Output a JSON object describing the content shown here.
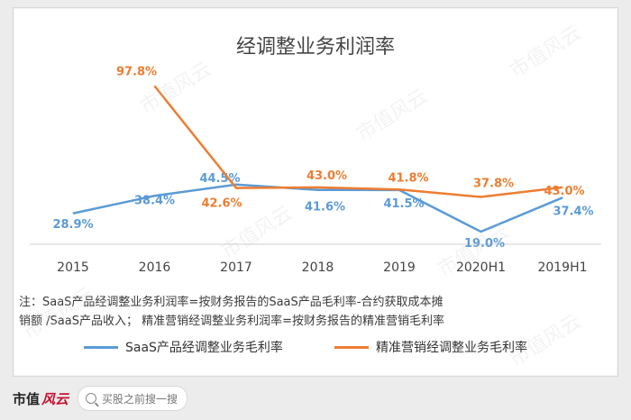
{
  "chart_data": {
    "type": "line",
    "title": "经调整业务利润率",
    "categories": [
      "2015",
      "2016",
      "2017",
      "2018",
      "2019",
      "2020H1",
      "2019H1"
    ],
    "series": [
      {
        "name": "SaaS产品经调整业务毛利率",
        "color": "#5b9bd5",
        "values": [
          28.9,
          38.4,
          44.5,
          41.6,
          41.5,
          19.0,
          37.4
        ],
        "labels": [
          "28.9%",
          "38.4%",
          "44.5%",
          "41.6%",
          "41.5%",
          "19.0%",
          "37.4%"
        ]
      },
      {
        "name": "精准营销经调整业务毛利率",
        "color": "#ed7d31",
        "values": [
          null,
          97.8,
          42.6,
          43.0,
          41.8,
          37.8,
          43.0
        ],
        "labels": [
          "",
          "97.8%",
          "42.6%",
          "43.0%",
          "41.8%",
          "37.8%",
          "43.0%"
        ]
      }
    ],
    "note_lines": [
      "注：SaaS产品经调整业务利润率=按财务报告的SaaS产品毛利率-合约获取成本摊",
      "销额 /SaaS产品收入；  精准营销经调整业务利润率=按财务报告的精准营销毛利率"
    ],
    "legend_position": "bottom"
  },
  "watermark_text": "市值风云",
  "footer": {
    "brand": "市值",
    "brand_mark": "风云",
    "search_placeholder": "买股之前搜一搜"
  }
}
